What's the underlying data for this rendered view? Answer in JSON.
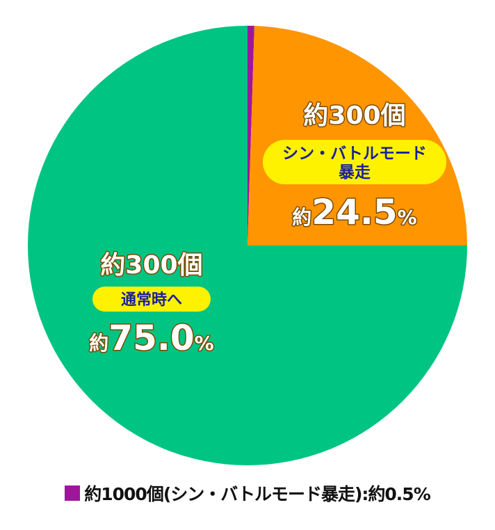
{
  "chart_data": {
    "type": "pie",
    "slices": [
      {
        "key": "shin",
        "value": 0.5,
        "color": "#a0169a",
        "count_label": "約1000個",
        "badge_lines": [
          "(シン・バトルモード暴走)"
        ],
        "pct_prefix": "約",
        "pct_value": "0.5",
        "pct_unit": "%"
      },
      {
        "key": "bousou",
        "value": 24.5,
        "color": "#ff9500",
        "count_label": "約300個",
        "badge_lines": [
          "シン・バトルモード",
          "暴走"
        ],
        "pct_prefix": "約",
        "pct_value": "24.5",
        "pct_unit": "%"
      },
      {
        "key": "tsujou",
        "value": 75.0,
        "color": "#00c482",
        "count_label": "約300個",
        "badge_lines": [
          "通常時へ"
        ],
        "pct_prefix": "約",
        "pct_value": "75.0",
        "pct_unit": "%"
      }
    ],
    "legend": {
      "placement": "bottom",
      "text": "約1000個(シン・バトルモード暴走):約0.5%",
      "swatch_color": "#a0169a"
    },
    "label_text_color": "#ffffff",
    "label_outline_color": "#7a4a00",
    "badge_fill": "#fff200",
    "badge_text_color": "#1a1f9c"
  }
}
